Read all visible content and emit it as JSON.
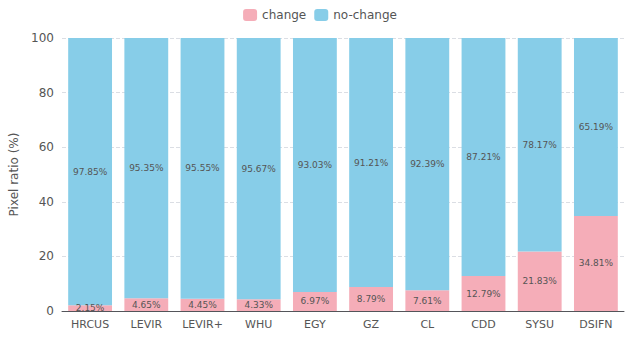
{
  "chart_data": {
    "type": "bar",
    "stacked": true,
    "categories": [
      "HRCUS",
      "LEVIR",
      "LEVIR+",
      "WHU",
      "EGY",
      "GZ",
      "CL",
      "CDD",
      "SYSU",
      "DSIFN"
    ],
    "series": [
      {
        "name": "change",
        "color": "#f5adb8",
        "values": [
          2.15,
          4.65,
          4.45,
          4.33,
          6.97,
          8.79,
          7.61,
          12.79,
          21.83,
          34.81
        ],
        "value_labels": [
          "2.15%",
          "4.65%",
          "4.45%",
          "4.33%",
          "6.97%",
          "8.79%",
          "7.61%",
          "12.79%",
          "21.83%",
          "34.81%"
        ]
      },
      {
        "name": "no-change",
        "color": "#87cde8",
        "values": [
          97.85,
          95.35,
          95.55,
          95.67,
          93.03,
          91.21,
          92.39,
          87.21,
          78.17,
          65.19
        ],
        "value_labels": [
          "97.85%",
          "95.35%",
          "95.55%",
          "95.67%",
          "93.03%",
          "91.21%",
          "92.39%",
          "87.21%",
          "78.17%",
          "65.19%"
        ]
      }
    ],
    "ylabel": "Pixel ratio (%)",
    "ylim": [
      0,
      100
    ],
    "yticks": [
      0,
      20,
      40,
      60,
      80,
      100
    ],
    "grid": true,
    "legend": "top",
    "data_labels": true
  }
}
